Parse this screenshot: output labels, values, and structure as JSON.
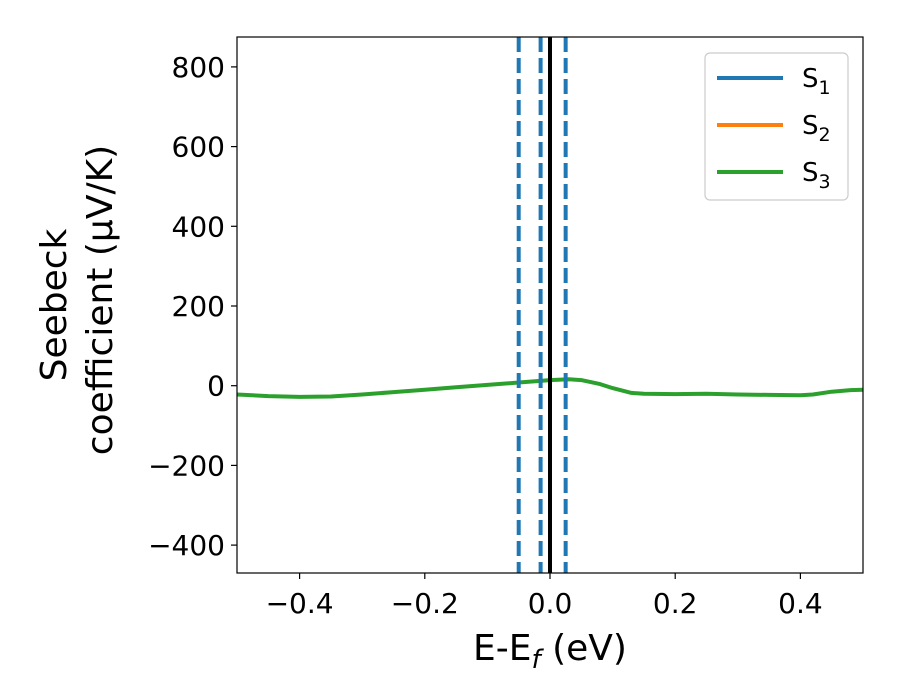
{
  "chart_data": {
    "type": "line",
    "xlabel": {
      "main": "E-E",
      "sub": "f",
      "suffix": " (eV)"
    },
    "ylabel": {
      "line1": "Seebeck",
      "line2": "coefficient  (μV/K)"
    },
    "xlim": [
      -0.5,
      0.5
    ],
    "ylim": [
      -470,
      875
    ],
    "xticks": [
      -0.4,
      -0.2,
      0.0,
      0.2,
      0.4
    ],
    "xtick_labels": [
      "−0.4",
      "−0.2",
      "0.0",
      "0.2",
      "0.4"
    ],
    "yticks": [
      -400,
      -200,
      0,
      200,
      400,
      600,
      800
    ],
    "ytick_labels": [
      "−400",
      "−200",
      "0",
      "200",
      "400",
      "600",
      "800"
    ],
    "legend_position": "top-right",
    "series": [
      {
        "name": "S",
        "sub": "1",
        "color": "#1f77b4",
        "x": [],
        "y": []
      },
      {
        "name": "S",
        "sub": "2",
        "color": "#ff7f0e",
        "x": [],
        "y": []
      },
      {
        "name": "S",
        "sub": "3",
        "color": "#2ca02c",
        "x": [
          -0.5,
          -0.45,
          -0.4,
          -0.35,
          -0.3,
          -0.25,
          -0.2,
          -0.15,
          -0.1,
          -0.05,
          0.0,
          0.03,
          0.05,
          0.08,
          0.1,
          0.13,
          0.15,
          0.2,
          0.25,
          0.3,
          0.35,
          0.4,
          0.42,
          0.45,
          0.48,
          0.5
        ],
        "y": [
          -22,
          -26,
          -28,
          -27,
          -22,
          -16,
          -10,
          -4,
          2,
          8,
          14,
          16,
          14,
          4,
          -6,
          -18,
          -20,
          -21,
          -20,
          -22,
          -23,
          -24,
          -22,
          -15,
          -11,
          -10
        ]
      }
    ],
    "vertical_lines": [
      {
        "x": -0.05,
        "color": "#1f77b4",
        "style": "dashed"
      },
      {
        "x": -0.015,
        "color": "#1f77b4",
        "style": "dashed"
      },
      {
        "x": 0.025,
        "color": "#1f77b4",
        "style": "dashed"
      },
      {
        "x": 0.0,
        "color": "#000000",
        "style": "solid"
      }
    ]
  }
}
